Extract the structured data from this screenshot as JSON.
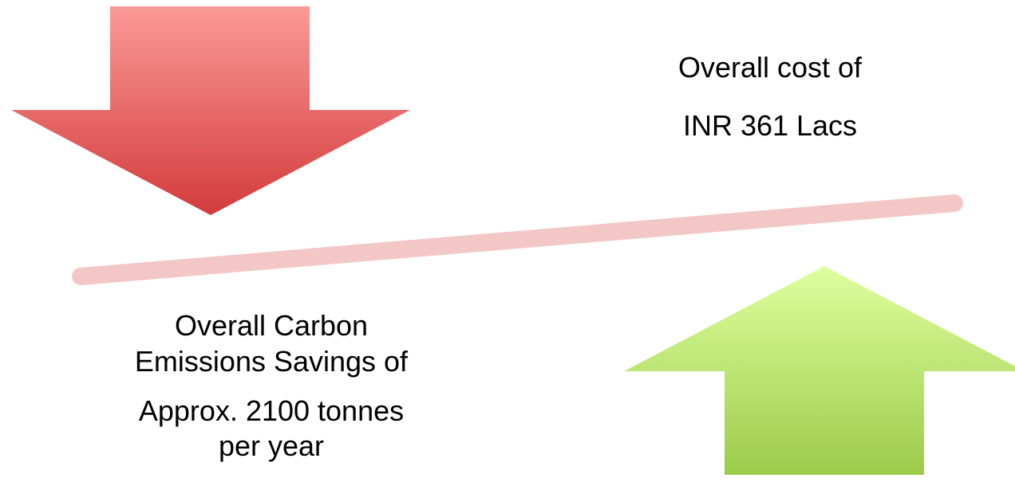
{
  "cost_text": [
    "Overall cost of",
    "INR 361 Lacs"
  ],
  "savings_text": [
    "Overall Carbon",
    "Emissions Savings of",
    "Approx. 2100 tonnes",
    "per year"
  ]
}
